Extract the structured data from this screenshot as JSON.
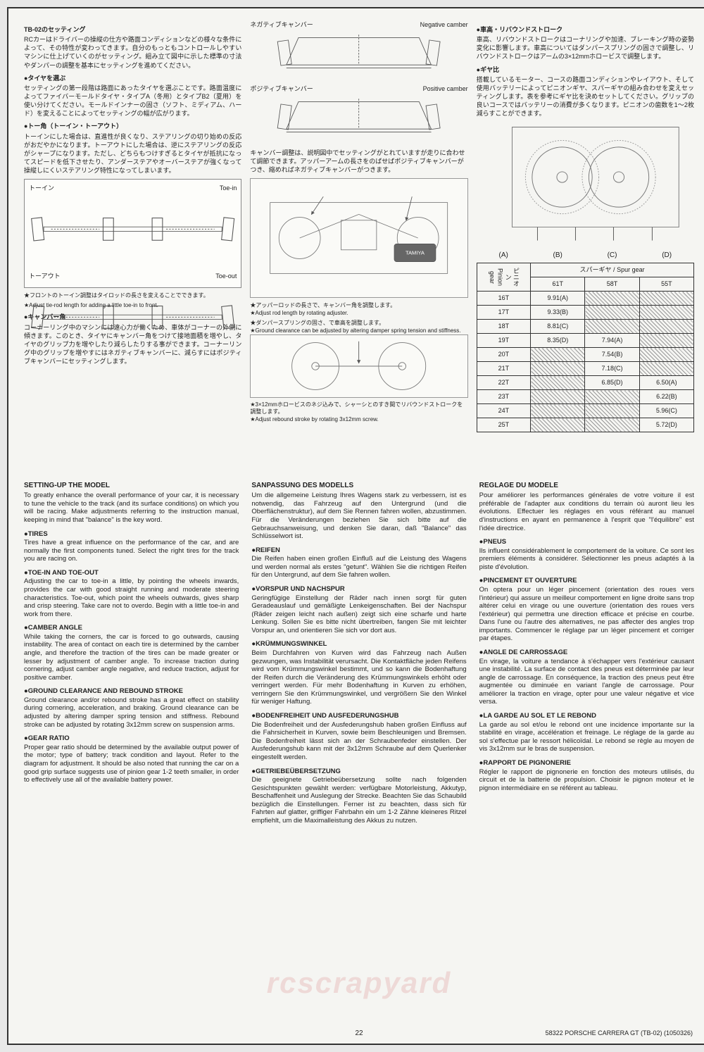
{
  "jp": {
    "title": "TB-02のセッティング",
    "intro": "RCカーはドライバーの操縦の仕方や路面コンディションなどの様々な条件によって、その特性が変わってきます。自分のもっともコントロールしやすいマシンに仕上げていくのがセッティング。組み立て図中に示した標準の寸法やダンパーの調整を基本にセッティングを進めてください。",
    "tire_h": "●タイヤを選ぶ",
    "tire": "セッティングの第一段階は路面にあったタイヤを選ぶことです。路面温度によってファイバーモールドタイヤ・タイプA（冬用）とタイプB2（夏用）を使い分けてください。モールドインナーの固さ（ソフト、ミディアム、ハード）を変えることによってセッティングの幅が広がります。",
    "toe_h": "●トー角（トーイン・トーアウト）",
    "toe": "トーインにした場合は、直進性が良くなり、ステアリングの切り始めの反応がおだやかになります。トーアウトにした場合は、逆にステアリングの反応がシャープになります。ただし、どちらもつけすぎるとタイヤが抵抗になってスピードを低下させたり、アンダーステアやオーバーステアが強くなって操縦しにくいステアリング特性になってしまいます。",
    "toe_in": "トーイン",
    "toe_in_en": "Toe-in",
    "toe_out": "トーアウト",
    "toe_out_en": "Toe-out",
    "toe_note_jp": "★フロントのトーイン調整はタイロッドの長さを変えることでできます。",
    "toe_note_en": "★Adjust tie-rod length for adding a little toe-in to front.",
    "camber_h": "●キャンバー角",
    "camber": "コーナーリング中のマシンには遠心力が働くため、車体がコーナーの外側に傾きます。このとき、タイヤにキャンバー角をつけて接地面積を増やし、タイヤのグリップ力を増やしたり減らしたりする事ができます。コーナーリング中のグリップを増やすにはネガティブキャンバーに、減らすにはポジティブキャンバーにセッティングします。"
  },
  "col2": {
    "neg_jp": "ネガティブキャンバー",
    "neg_en": "Negative camber",
    "pos_jp": "ポジティブキャンバー",
    "pos_en": "Positive camber",
    "cam_note": "キャンバー調整は、説明図中でセッティングがとれていますが走りに合わせて調節できます。アッパーアームの長さをのばせばポジティブキャンバーがつき、縮めればネガティブキャンバーがつきます。",
    "rod_jp": "★アッパーロッドの長さで、キャンバー角を調整します。",
    "rod_en": "★Adjust rod length by rotating adjuster.",
    "spring_jp": "★ダンパースプリングの固さ、で車高を調整します。",
    "spring_en": "★Ground clearance can be adjusted by altering damper spring tension and stiffness.",
    "rebound_jp": "★3×12mmホロービスのネジ込みで、シャーシとのすき間でリバウンドストロークを調整します。",
    "rebound_en": "★Adjust rebound stroke by rotating 3x12mm screw."
  },
  "col3": {
    "ride_h": "●車高・リバウンドストローク",
    "ride": "車高、リバウンドストロークはコーナリングや加速、ブレーキング時の姿勢変化に影響します。車高についてはダンパースプリングの固さで調整し、リバウンドストロークはアームの3×12mmホロービスで調整します。",
    "gear_h": "●ギヤ比",
    "gear": "搭載しているモーター、コースの路面コンディションやレイアウト、そして使用バッテリーによってピニオンギヤ、スパーギヤの組み合わせを変えセッティングします。表を参考にギヤ比を決めセットしてください。グリップの良いコースではバッテリーの消費が多くなります。ピニオンの歯数を1～2枚減らすことができます。",
    "gear_labels": [
      "(A)",
      "(B)",
      "(C)",
      "(D)"
    ]
  },
  "gear_table": {
    "pinion_jp": "ピニオン",
    "pinion_en": "Pinion gear",
    "spur_jp": "スパーギヤ",
    "spur_en": "Spur gear",
    "cols": [
      "61T",
      "58T",
      "55T"
    ],
    "rows": [
      {
        "p": "16T",
        "c": [
          "9.91(A)",
          "",
          ""
        ]
      },
      {
        "p": "17T",
        "c": [
          "9.33(B)",
          "",
          ""
        ]
      },
      {
        "p": "18T",
        "c": [
          "8.81(C)",
          "",
          ""
        ]
      },
      {
        "p": "19T",
        "c": [
          "8.35(D)",
          "7.94(A)",
          ""
        ]
      },
      {
        "p": "20T",
        "c": [
          "",
          "7.54(B)",
          ""
        ]
      },
      {
        "p": "21T",
        "c": [
          "",
          "7.18(C)",
          ""
        ]
      },
      {
        "p": "22T",
        "c": [
          "",
          "6.85(D)",
          "6.50(A)"
        ]
      },
      {
        "p": "23T",
        "c": [
          "",
          "",
          "6.22(B)"
        ]
      },
      {
        "p": "24T",
        "c": [
          "",
          "",
          "5.96(C)"
        ]
      },
      {
        "p": "25T",
        "c": [
          "",
          "",
          "5.72(D)"
        ]
      }
    ]
  },
  "en": {
    "h": "SETTING-UP THE MODEL",
    "intro": "To greatly enhance the overall performance of your car, it is necessary to tune the vehicle to the track (and its surface conditions) on which you will be racing. Make adjustments referring to the instruction manual, keeping in mind that \"balance\" is the key word.",
    "tires_h": "●TIRES",
    "tires": "Tires have a great influence on the performance of the car, and are normally the first components tuned. Select the right tires for the track you are racing on.",
    "toe_h": "●TOE-IN AND TOE-OUT",
    "toe": "Adjusting the car to toe-in a little, by pointing the wheels inwards, provides the car with good straight running and moderate steering characteristics. Toe-out, which point the wheels outwards, gives sharp and crisp steering. Take care not to overdo. Begin with a little toe-in and work from there.",
    "cam_h": "●CAMBER ANGLE",
    "cam": "While taking the corners, the car is forced to go outwards, causing instability. The area of contact on each tire is determined by the camber angle, and therefore the traction of the tires can be made greater or lesser by adjustment of camber angle. To increase traction during cornering, adjust camber angle negative, and reduce traction, adjust for positive camber.",
    "ground_h": "●GROUND CLEARANCE AND REBOUND STROKE",
    "ground": "Ground clearance and/or rebound stroke has a great effect on stability during cornering, acceleration, and braking. Ground clearance can be adjusted by altering damper spring tension and stiffness. Rebound stroke can be adjusted by rotating 3x12mm screw on suspension arms.",
    "gear_h": "●GEAR RATIO",
    "gear": "Proper gear ratio should be determined by the available output power of the motor; type of battery; track condition and layout. Refer to the diagram for adjustment. It should be also noted that running the car on a good grip surface suggests use of pinion gear 1-2 teeth smaller, in order to effectively use all of the available battery power."
  },
  "de": {
    "h": "SANPASSUNG DES MODELLS",
    "intro": "Um die allgemeine Leistung Ihres Wagens stark zu verbessern, ist es notwendig, das Fahrzeug auf den Untergrund (und die Oberflächenstruktur), auf dem Sie Rennen fahren wollen, abzustimmen. Für die Veränderungen beziehen Sie sich bitte auf die Gebrauchsanweisung, und denken Sie daran, daß \"Balance\" das Schlüsselwort ist.",
    "tires_h": "●REIFEN",
    "tires": "Die Reifen haben einen großen Einfluß auf die Leistung des Wagens und werden normal als erstes \"getunt\". Wählen Sie die richtigen Reifen für den Untergrund, auf dem Sie fahren wollen.",
    "toe_h": "●VORSPUR UND NACHSPUR",
    "toe": "Geringfügige Einstellung der Räder nach innen sorgt für guten Geradeauslauf und gemäßigte Lenkeigenschaften. Bei der Nachspur (Räder zeigen leicht nach außen) zeigt sich eine scharfe und harte Lenkung. Sollen Sie es bitte nicht übertreiben, fangen Sie mit leichter Vorspur an, und orientieren Sie sich vor dort aus.",
    "cam_h": "●KRÜMMUNGSWINKEL",
    "cam": "Beim Durchfahren von Kurven wird das Fahrzeug nach Außen gezwungen, was Instabilität verursacht. Die Kontaktfläche jeden Reifens wird vom Krümmungswinkel bestimmt, und so kann die Bodenhaftung der Reifen durch die Veränderung des Krümmungswinkels erhöht oder verringert werden. Für mehr Bodenhaftung in Kurven zu erhöhen, verringern Sie den Krümmungswinkel, und vergrößern Sie den Winkel für weniger Haftung.",
    "ground_h": "●BODENFREIHEIT UND AUSFEDERUNGSHUB",
    "ground": "Die Bodenfreiheit und der Ausfederungshub haben großen Einfluss auf die Fahrsicherheit in Kurven, sowie beim Beschleunigen und Bremsen. Die Bodenfreiheit lässt sich an der Schraubenfeder einstellen. Der Ausfederungshub kann mit der 3x12mm Schraube auf dem Querlenker eingestellt werden.",
    "gear_h": "●GETRIEBEÜBERSETZUNG",
    "gear": "Die geeignete Getriebeübersetzung sollte nach folgenden Gesichtspunkten gewählt werden: verfügbare Motorleistung, Akkutyp, Beschaffenheit und Auslegung der Strecke. Beachten Sie das Schaubild bezüglich die Einstellungen. Ferner ist zu beachten, dass sich für Fahrten auf glatter, griffiger Fahrbahn ein um 1-2 Zähne kleineres Ritzel empfiehlt, um die Maximalleistung des Akkus zu nutzen."
  },
  "fr": {
    "h": "REGLAGE DU MODELE",
    "intro": "Pour améliorer les performances générales de votre voiture il est préférable de l'adapter aux conditions du terrain où auront lieu les évolutions. Effectuer les réglages en vous référant au manuel d'instructions en ayant en permanence à l'esprit que \"l'équilibre\" est l'idée directrice.",
    "tires_h": "●PNEUS",
    "tires": "Ils influent considérablement le comportement de la voiture. Ce sont les premiers éléments à considérer. Sélectionner les pneus adaptés à la piste d'évolution.",
    "toe_h": "●PINCEMENT ET OUVERTURE",
    "toe": "On optera pour un léger pincement (orientation des roues vers l'intérieur) qui assure un meilleur comportement en ligne droite sans trop altérer celui en virage ou une ouverture (orientation des roues vers l'extérieur) qui permettra une direction efficace et précise en courbe. Dans l'une ou l'autre des alternatives, ne pas affecter des angles trop importants. Commencer le réglage par un léger pincement et corriger par étapes.",
    "cam_h": "●ANGLE DE CARROSSAGE",
    "cam": "En virage, la voiture a tendance à s'échapper vers l'extérieur causant une instabilité. La surface de contact des pneus est déterminée par leur angle de carrossage. En conséquence, la traction des pneus peut être augmentée ou diminuée en variant l'angle de carrossage. Pour améliorer la traction en virage, opter pour une valeur négative et vice versa.",
    "ground_h": "●LA GARDE AU SOL ET LE REBOND",
    "ground": "La garde au sol et/ou le rebond ont une incidence importante sur la stabilité en virage, accélération et freinage. Le réglage de la garde au sol s'effectue par le ressort hélicoïdal. Le rebond se règle au moyen de vis 3x12mm sur le bras de suspension.",
    "gear_h": "●RAPPORT DE PIGNONERIE",
    "gear": "Régler le rapport de pignonerie en fonction des moteurs utilisés, du circuit et de la batterie de propulsion. Choisir le pignon moteur et le pignon intermédiaire en se référent au tableau."
  },
  "footer": {
    "page": "22",
    "model": "58322 PORSCHE CARRERA GT (TB-02) (1050326)"
  },
  "watermark": "rcscrapyard"
}
